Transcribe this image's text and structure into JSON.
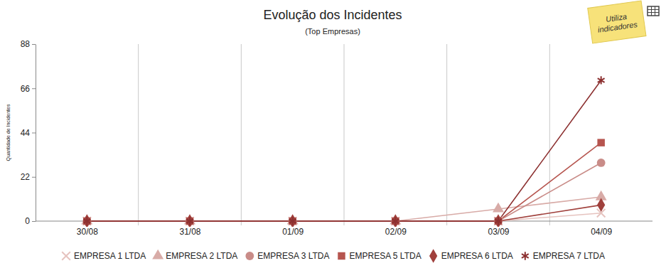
{
  "chart_data": {
    "type": "line",
    "title": "Evolução dos Incidentes",
    "subtitle": "(Top Empresas)",
    "y_label": "Quantidade de Incidentes",
    "annotations": [
      "Utiliza indicadores"
    ],
    "categories": [
      "30/08",
      "31/08",
      "01/09",
      "02/09",
      "03/09",
      "04/09"
    ],
    "ylim": [
      0,
      88
    ],
    "yticks": [
      0,
      22,
      44,
      66,
      88
    ],
    "grid": true,
    "legend": "bottom",
    "series": [
      {
        "name": "EMPRESA 1 LTDA",
        "color": "#e6c3bf",
        "marker": "x",
        "values": [
          0,
          0,
          0,
          0,
          0,
          4
        ]
      },
      {
        "name": "EMPRESA 2 LTDA",
        "color": "#d8aba7",
        "marker": "triangle",
        "values": [
          0,
          0,
          0,
          0,
          6,
          12
        ]
      },
      {
        "name": "EMPRESA 3 LTDA",
        "color": "#c98c88",
        "marker": "circle",
        "values": [
          0,
          0,
          0,
          0,
          0,
          29
        ]
      },
      {
        "name": "EMPRESA 5 LTDA",
        "color": "#b6554f",
        "marker": "square",
        "values": [
          0,
          0,
          0,
          0,
          0,
          39
        ]
      },
      {
        "name": "EMPRESA 6 LTDA",
        "color": "#a0403c",
        "marker": "diamond",
        "values": [
          0,
          0,
          0,
          0,
          0,
          8
        ]
      },
      {
        "name": "EMPRESA 7 LTDA",
        "color": "#8c3030",
        "marker": "star",
        "values": [
          0,
          0,
          0,
          0,
          0,
          70
        ]
      }
    ]
  }
}
